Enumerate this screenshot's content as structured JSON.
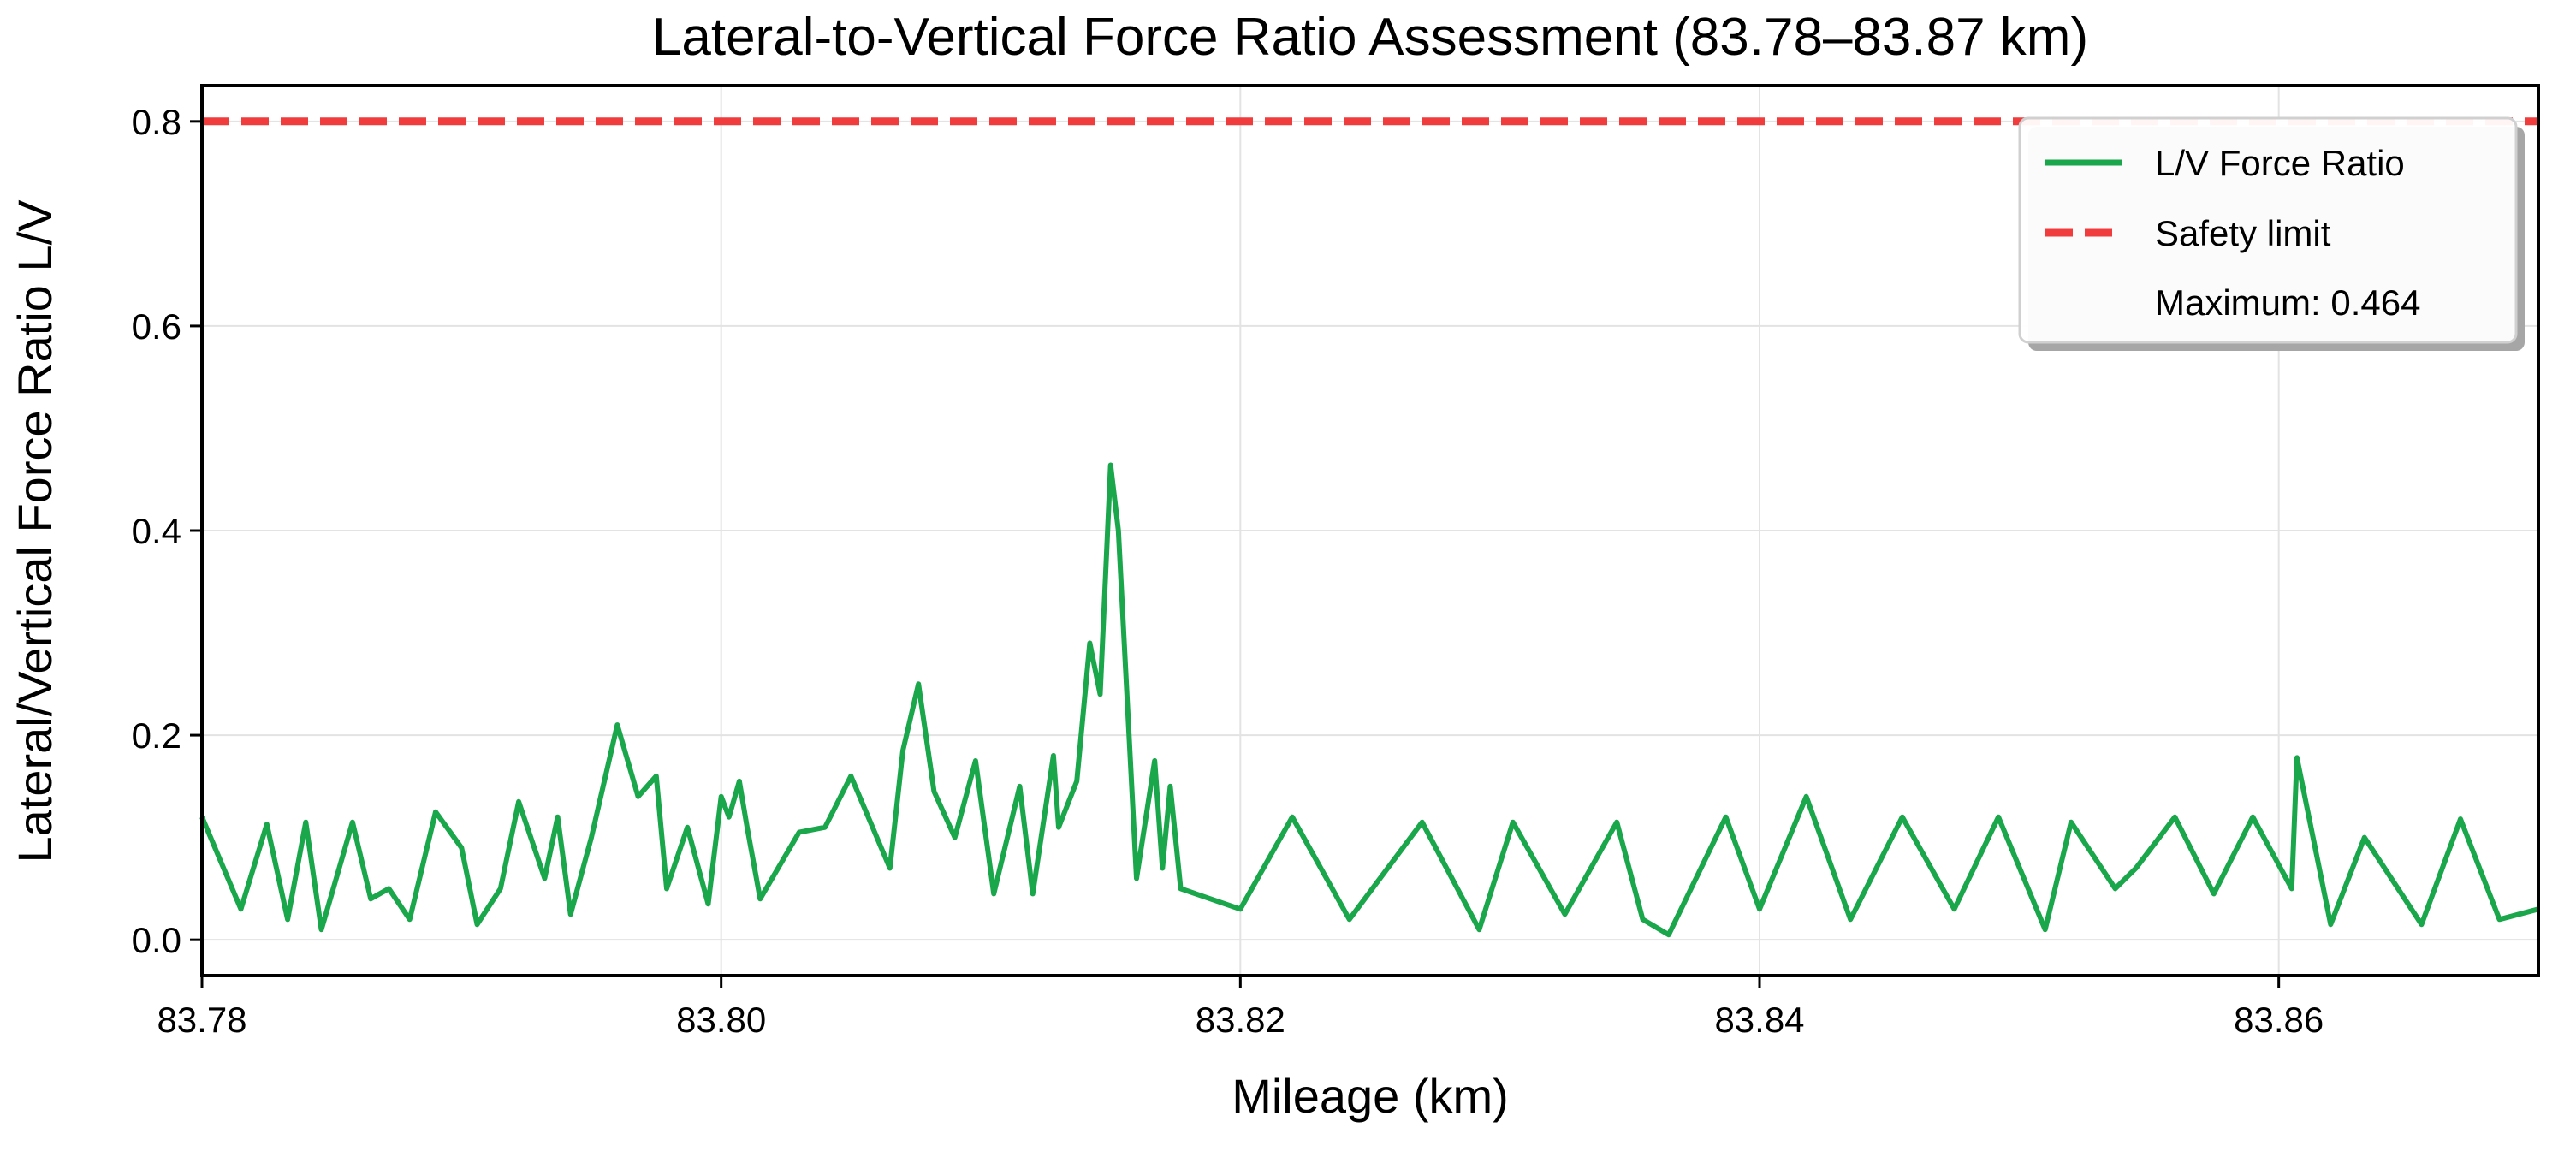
{
  "chart_data": {
    "type": "line",
    "title": "Lateral-to-Vertical Force Ratio Assessment (83.78–83.87 km)",
    "xlabel": "Mileage (km)",
    "ylabel": "Lateral/Vertical Force Ratio L/V",
    "xlim": [
      83.78,
      83.87
    ],
    "ylim": [
      -0.035,
      0.835
    ],
    "x_ticks": [
      83.78,
      83.8,
      83.82,
      83.84,
      83.86
    ],
    "x_tick_labels": [
      "83.78",
      "83.80",
      "83.82",
      "83.84",
      "83.86"
    ],
    "y_ticks": [
      0.0,
      0.2,
      0.4,
      0.6,
      0.8
    ],
    "y_tick_labels": [
      "0.0",
      "0.2",
      "0.4",
      "0.6",
      "0.8"
    ],
    "grid": true,
    "legend_position": "top-right",
    "series": [
      {
        "name": "L/V Force Ratio",
        "style": "solid",
        "color": "#1aa64a",
        "x": [
          83.78,
          83.7815,
          83.7825,
          83.7833,
          83.784,
          83.7846,
          83.785,
          83.7858,
          83.7865,
          83.7872,
          83.788,
          83.789,
          83.79,
          83.7906,
          83.7915,
          83.7922,
          83.7932,
          83.7937,
          83.7942,
          83.795,
          83.796,
          83.7968,
          83.7975,
          83.7979,
          83.7987,
          83.7995,
          83.8,
          83.8003,
          83.8007,
          83.801,
          83.8015,
          83.803,
          83.804,
          83.805,
          83.8065,
          83.807,
          83.8076,
          83.8082,
          83.809,
          83.8098,
          83.8105,
          83.8115,
          83.812,
          83.8128,
          83.813,
          83.8137,
          83.8142,
          83.8146,
          83.815,
          83.8153,
          83.816,
          83.8167,
          83.817,
          83.8173,
          83.8177,
          83.82,
          83.822,
          83.8242,
          83.827,
          83.8292,
          83.8305,
          83.8325,
          83.8345,
          83.8355,
          83.8365,
          83.8387,
          83.84,
          83.8418,
          83.8435,
          83.8455,
          83.8475,
          83.8492,
          83.851,
          83.852,
          83.8537,
          83.8545,
          83.856,
          83.8575,
          83.859,
          83.8605,
          83.8607,
          83.862,
          83.8633,
          83.8655,
          83.867,
          83.8685,
          83.87
        ],
        "y": [
          0.12,
          0.03,
          0.113,
          0.02,
          0.115,
          0.01,
          0.045,
          0.115,
          0.04,
          0.05,
          0.02,
          0.125,
          0.09,
          0.015,
          0.05,
          0.135,
          0.06,
          0.12,
          0.025,
          0.1,
          0.21,
          0.14,
          0.16,
          0.05,
          0.11,
          0.035,
          0.14,
          0.12,
          0.155,
          0.11,
          0.04,
          0.105,
          0.11,
          0.16,
          0.07,
          0.185,
          0.25,
          0.145,
          0.1,
          0.175,
          0.045,
          0.15,
          0.045,
          0.18,
          0.11,
          0.155,
          0.29,
          0.24,
          0.464,
          0.4,
          0.06,
          0.175,
          0.07,
          0.15,
          0.05,
          0.03,
          0.12,
          0.02,
          0.115,
          0.01,
          0.115,
          0.025,
          0.115,
          0.02,
          0.005,
          0.12,
          0.03,
          0.14,
          0.02,
          0.12,
          0.03,
          0.12,
          0.01,
          0.115,
          0.05,
          0.07,
          0.12,
          0.045,
          0.12,
          0.05,
          0.178,
          0.015,
          0.1,
          0.015,
          0.118,
          0.02,
          0.03
        ]
      },
      {
        "name": "Safety limit",
        "style": "dashed",
        "color": "#f03c3c",
        "x": [
          83.78,
          83.87
        ],
        "y": [
          0.8,
          0.8
        ]
      }
    ],
    "annotation": "Maximum: 0.464"
  }
}
